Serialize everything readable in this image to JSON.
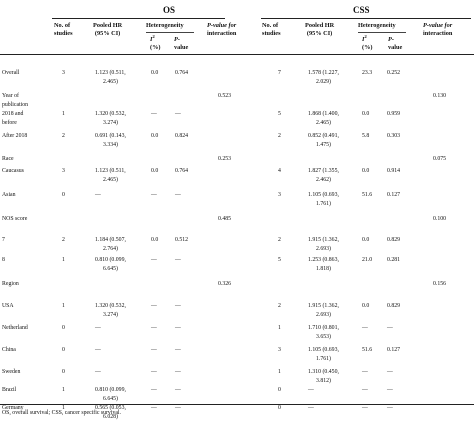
{
  "groups": {
    "os": "OS",
    "css": "CSS"
  },
  "headers": {
    "no_studies": [
      "No. of",
      "studies"
    ],
    "pooled_hr": [
      "Pooled HR",
      "(95% CI)"
    ],
    "heterogeneity": "Heterogeneity",
    "i2_main": "I",
    "i2_sup": "2",
    "i2_unit": "(%)",
    "p_top": "P-",
    "p_bot": "value",
    "pint_top": "P-value for",
    "pint_bot": "interaction"
  },
  "rows": [
    {
      "label": "Overall",
      "os_n": "3",
      "os_hr1": "1.123 (0.511,",
      "os_hr2": "2.465)",
      "os_i2": "0.0",
      "os_p": "0.764",
      "os_pi": "",
      "css_n": "7",
      "css_hr1": "1.578 (1.227,",
      "css_hr2": "2.029)",
      "css_i2": "23.3",
      "css_p": "0.252",
      "css_pi": ""
    },
    {
      "label": "Year of",
      "label2": "publication",
      "os_n": "",
      "os_hr1": "",
      "os_hr2": "",
      "os_i2": "",
      "os_p": "",
      "os_pi": "0.523",
      "css_n": "",
      "css_hr1": "",
      "css_hr2": "",
      "css_i2": "",
      "css_p": "",
      "css_pi": "0.130"
    },
    {
      "label": "2018 and",
      "label2": "before",
      "os_n": "1",
      "os_hr1": "1.320 (0.532,",
      "os_hr2": "3.274)",
      "os_i2": "—",
      "os_p": "—",
      "os_pi": "",
      "css_n": "5",
      "css_hr1": "1.868 (1.400,",
      "css_hr2": "2.465)",
      "css_i2": "0.0",
      "css_p": "0.959",
      "css_pi": ""
    },
    {
      "label": "After 2018",
      "os_n": "2",
      "os_hr1": "0.691 (0.143,",
      "os_hr2": "3.334)",
      "os_i2": "0.0",
      "os_p": "0.824",
      "os_pi": "",
      "css_n": "2",
      "css_hr1": "0.852 (0.491,",
      "css_hr2": "1.475)",
      "css_i2": "5.8",
      "css_p": "0.303",
      "css_pi": ""
    },
    {
      "label": "Race",
      "os_n": "",
      "os_hr1": "",
      "os_hr2": "",
      "os_i2": "",
      "os_p": "",
      "os_pi": "0.253",
      "css_n": "",
      "css_hr1": "",
      "css_hr2": "",
      "css_i2": "",
      "css_p": "",
      "css_pi": "0.075"
    },
    {
      "label": "Caucasus",
      "os_n": "3",
      "os_hr1": "1.123 (0.511,",
      "os_hr2": "2.465)",
      "os_i2": "0.0",
      "os_p": "0.764",
      "os_pi": "",
      "css_n": "4",
      "css_hr1": "1.827 (1.355,",
      "css_hr2": "2.462)",
      "css_i2": "0.0",
      "css_p": "0.914",
      "css_pi": ""
    },
    {
      "label": "Asian",
      "os_n": "0",
      "os_hr1": "—",
      "os_hr2": "",
      "os_i2": "—",
      "os_p": "—",
      "os_pi": "",
      "css_n": "3",
      "css_hr1": "1.105 (0.693,",
      "css_hr2": "1.761)",
      "css_i2": "51.6",
      "css_p": "0.127",
      "css_pi": ""
    },
    {
      "label": "NOS score",
      "os_n": "",
      "os_hr1": "",
      "os_hr2": "",
      "os_i2": "",
      "os_p": "",
      "os_pi": "0.485",
      "css_n": "",
      "css_hr1": "",
      "css_hr2": "",
      "css_i2": "",
      "css_p": "",
      "css_pi": "0.100"
    },
    {
      "label": "7",
      "os_n": "2",
      "os_hr1": "1.184 (0.507,",
      "os_hr2": "2.764)",
      "os_i2": "0.0",
      "os_p": "0.512",
      "os_pi": "",
      "css_n": "2",
      "css_hr1": "1.915 (1.362,",
      "css_hr2": "2.693)",
      "css_i2": "0.0",
      "css_p": "0.829",
      "css_pi": ""
    },
    {
      "label": "8",
      "os_n": "1",
      "os_hr1": "0.810 (0.099,",
      "os_hr2": "6.645)",
      "os_i2": "—",
      "os_p": "—",
      "os_pi": "",
      "css_n": "5",
      "css_hr1": "1.253 (0.863,",
      "css_hr2": "1.818)",
      "css_i2": "21.0",
      "css_p": "0.281",
      "css_pi": ""
    },
    {
      "label": "Region",
      "os_n": "",
      "os_hr1": "",
      "os_hr2": "",
      "os_i2": "",
      "os_p": "",
      "os_pi": "0.326",
      "css_n": "",
      "css_hr1": "",
      "css_hr2": "",
      "css_i2": "",
      "css_p": "",
      "css_pi": "0.156"
    },
    {
      "label": "USA",
      "os_n": "1",
      "os_hr1": "1.320 (0.532,",
      "os_hr2": "3.274)",
      "os_i2": "—",
      "os_p": "—",
      "os_pi": "",
      "css_n": "2",
      "css_hr1": "1.915 (1.362,",
      "css_hr2": "2.693)",
      "css_i2": "0.0",
      "css_p": "0.829",
      "css_pi": ""
    },
    {
      "label": "Netherland",
      "os_n": "0",
      "os_hr1": "—",
      "os_hr2": "",
      "os_i2": "—",
      "os_p": "—",
      "os_pi": "",
      "css_n": "1",
      "css_hr1": "1.710 (0.801,",
      "css_hr2": "3.653)",
      "css_i2": "—",
      "css_p": "—",
      "css_pi": ""
    },
    {
      "label": "China",
      "os_n": "0",
      "os_hr1": "—",
      "os_hr2": "",
      "os_i2": "—",
      "os_p": "—",
      "os_pi": "",
      "css_n": "3",
      "css_hr1": "1.105 (0.693,",
      "css_hr2": "1.761)",
      "css_i2": "51.6",
      "css_p": "0.127",
      "css_pi": ""
    },
    {
      "label": "Sweden",
      "os_n": "0",
      "os_hr1": "—",
      "os_hr2": "",
      "os_i2": "—",
      "os_p": "—",
      "os_pi": "",
      "css_n": "1",
      "css_hr1": "1.310 (0.450,",
      "css_hr2": "3.812)",
      "css_i2": "—",
      "css_p": "—",
      "css_pi": ""
    },
    {
      "label": "Brazil",
      "os_n": "1",
      "os_hr1": "0.810 (0.099,",
      "os_hr2": "6.645)",
      "os_i2": "—",
      "os_p": "—",
      "os_pi": "",
      "css_n": "0",
      "css_hr1": "—",
      "css_hr2": "",
      "css_i2": "—",
      "css_p": "—",
      "css_pi": ""
    },
    {
      "label": "Germany",
      "os_n": "1",
      "os_hr1": "0.565 (0.053,",
      "os_hr2": "6.028)",
      "os_i2": "—",
      "os_p": "—",
      "os_pi": "",
      "css_n": "0",
      "css_hr1": "—",
      "css_hr2": "",
      "css_i2": "—",
      "css_p": "—",
      "css_pi": ""
    }
  ],
  "footnote": "OS, overall survival; CSS, cancer specific survival."
}
